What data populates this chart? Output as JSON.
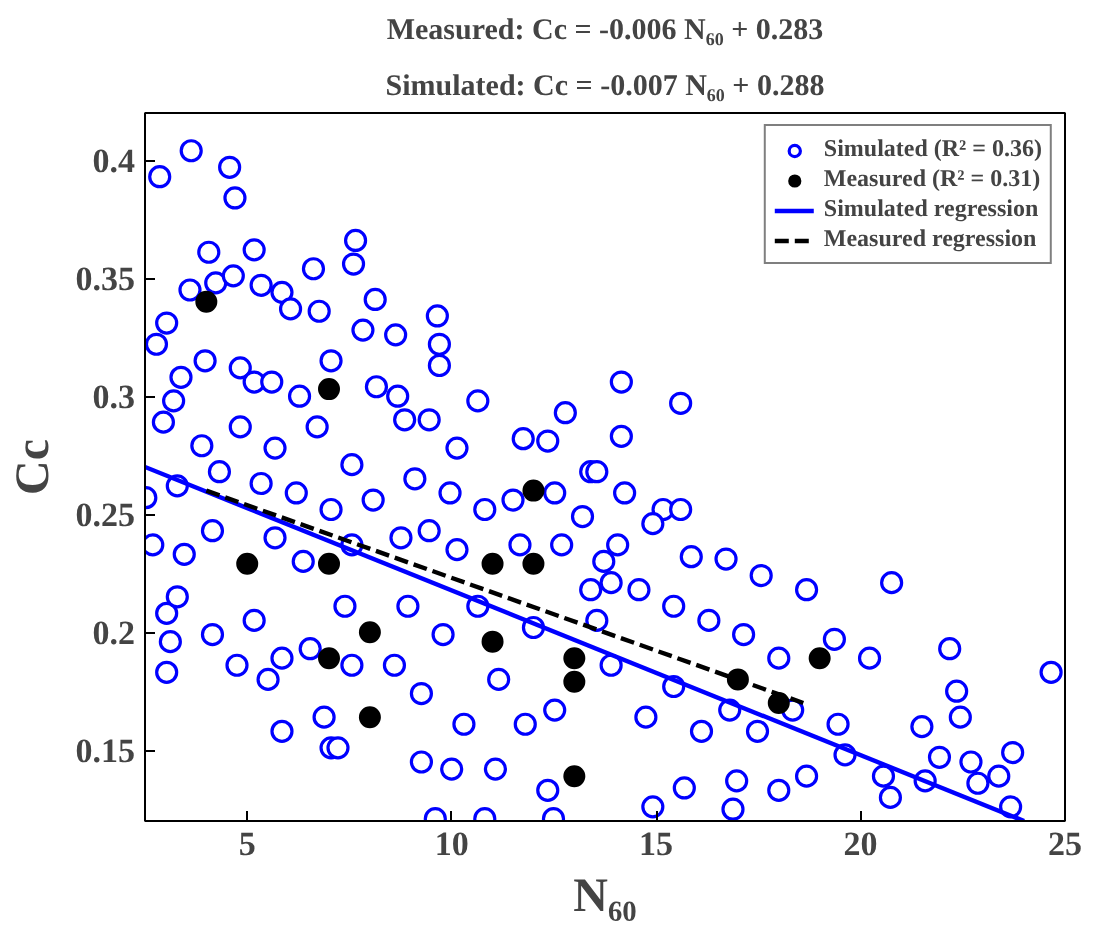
{
  "chart_data": {
    "type": "scatter",
    "title": "Measured: Cc = -0.006 N₆₀ + 0.283",
    "subtitle": "Simulated: Cc = -0.007 N₆₀ + 0.288",
    "xlabel": "N₆₀",
    "ylabel": "Cc",
    "xlim": [
      2.5,
      25
    ],
    "ylim": [
      0.12,
      0.42
    ],
    "xticks": [
      5,
      10,
      15,
      20,
      25
    ],
    "yticks": [
      0.15,
      0.2,
      0.25,
      0.3,
      0.35,
      0.4
    ],
    "grid": false,
    "legend": "top right",
    "series": [
      {
        "name": "Simulated (R² = 0.36)",
        "marker": "circle",
        "color": "#0000ff",
        "x": [
          3.63,
          2.86,
          4.57,
          4.7,
          4.06,
          5.17,
          3.6,
          4.23,
          4.66,
          5.34,
          5.85,
          6.62,
          7.65,
          7.6,
          8.13,
          6.76,
          6.06,
          9.65,
          7.83,
          8.63,
          9.7,
          9.7,
          3.03,
          2.78,
          3.38,
          3.2,
          3.97,
          4.83,
          5.17,
          5.6,
          6.28,
          7.05,
          8.16,
          8.68,
          10.64,
          2.95,
          3.89,
          4.83,
          5.68,
          6.71,
          7.56,
          8.85,
          9.45,
          10.13,
          11.75,
          12.78,
          12.35,
          13.4,
          2.52,
          3.29,
          4.32,
          5.34,
          6.2,
          7.05,
          8.08,
          9.1,
          9.96,
          10.81,
          11.5,
          12.52,
          13.2,
          2.69,
          3.46,
          4.15,
          5.68,
          6.37,
          7.56,
          8.76,
          9.45,
          10.13,
          11.67,
          12.69,
          13.72,
          3.03,
          3.29,
          3.12,
          3.03,
          4.15,
          4.75,
          5.17,
          5.85,
          5.51,
          5.85,
          6.54,
          7.39,
          7.56,
          7.05,
          7.22,
          6.88,
          8.6,
          8.93,
          9.26,
          9.26,
          9.6,
          10.0,
          9.79,
          10.64,
          10.3,
          10.81,
          11.07,
          11.15,
          11.8,
          12.0,
          12.49,
          12.35,
          12.52,
          13.4,
          13.55,
          14.15,
          15.6,
          14.15,
          14.23,
          15.17,
          15.6,
          13.55,
          14.06,
          14.92,
          15.86,
          16.71,
          17.57,
          18.68,
          20.76,
          13.9,
          14.58,
          15.43,
          16.29,
          17.14,
          18.0,
          19.36,
          20.22,
          22.18,
          24.66,
          13.9,
          14.75,
          15.43,
          16.11,
          16.8,
          17.48,
          18.34,
          18.68,
          19.45,
          19.62,
          20.56,
          20.73,
          21.5,
          21.93,
          22.35,
          22.44,
          22.7,
          22.87,
          23.38,
          23.72,
          23.67,
          21.58,
          14.92,
          15.69,
          16.88,
          16.97,
          18.0
        ],
        "values": [
          0.404,
          0.393,
          0.397,
          0.384,
          0.361,
          0.362,
          0.345,
          0.348,
          0.351,
          0.347,
          0.344,
          0.354,
          0.366,
          0.356,
          0.341,
          0.336,
          0.337,
          0.334,
          0.328,
          0.326,
          0.322,
          0.313,
          0.331,
          0.322,
          0.308,
          0.298,
          0.315,
          0.312,
          0.306,
          0.306,
          0.3,
          0.315,
          0.304,
          0.3,
          0.298,
          0.289,
          0.279,
          0.287,
          0.278,
          0.287,
          0.271,
          0.29,
          0.29,
          0.278,
          0.282,
          0.293,
          0.281,
          0.268,
          0.257,
          0.262,
          0.268,
          0.263,
          0.259,
          0.252,
          0.256,
          0.265,
          0.259,
          0.252,
          0.256,
          0.259,
          0.249,
          0.237,
          0.233,
          0.243,
          0.24,
          0.23,
          0.237,
          0.24,
          0.243,
          0.235,
          0.237,
          0.237,
          0.23,
          0.208,
          0.215,
          0.196,
          0.183,
          0.199,
          0.186,
          0.205,
          0.189,
          0.18,
          0.158,
          0.193,
          0.211,
          0.186,
          0.151,
          0.151,
          0.164,
          0.186,
          0.211,
          0.174,
          0.145,
          0.121,
          0.142,
          0.199,
          0.211,
          0.161,
          0.121,
          0.142,
          0.18,
          0.161,
          0.202,
          0.121,
          0.133,
          0.167,
          0.218,
          0.205,
          0.306,
          0.297,
          0.283,
          0.259,
          0.252,
          0.252,
          0.268,
          0.237,
          0.246,
          0.232,
          0.231,
          0.224,
          0.218,
          0.221,
          0.221,
          0.218,
          0.211,
          0.205,
          0.199,
          0.189,
          0.197,
          0.189,
          0.193,
          0.183,
          0.186,
          0.164,
          0.177,
          0.158,
          0.167,
          0.158,
          0.167,
          0.139,
          0.161,
          0.148,
          0.139,
          0.13,
          0.16,
          0.147,
          0.175,
          0.164,
          0.145,
          0.136,
          0.139,
          0.149,
          0.126,
          0.137,
          0.126,
          0.134,
          0.125,
          0.137,
          0.133
        ]
      },
      {
        "name": "Measured (R² = 0.31)",
        "marker": "circle",
        "color": "#000000",
        "x": [
          4,
          7,
          12,
          5,
          7,
          11,
          12,
          8,
          7,
          11,
          13,
          13,
          8,
          13,
          17,
          18,
          19
        ],
        "values": [
          0.34,
          0.303,
          0.26,
          0.229,
          0.229,
          0.229,
          0.229,
          0.2,
          0.189,
          0.196,
          0.189,
          0.179,
          0.164,
          0.139,
          0.18,
          0.17,
          0.189
        ]
      },
      {
        "name": "Simulated regression",
        "type": "line",
        "color": "#0000ff",
        "line_style": "solid",
        "x": [
          2.5,
          24.0
        ],
        "values": [
          0.27,
          0.12
        ]
      },
      {
        "name": "Measured regression",
        "type": "line",
        "color": "#000000",
        "line_style": "dashed",
        "x": [
          4.0,
          18.6
        ],
        "values": [
          0.26,
          0.17
        ]
      }
    ]
  }
}
